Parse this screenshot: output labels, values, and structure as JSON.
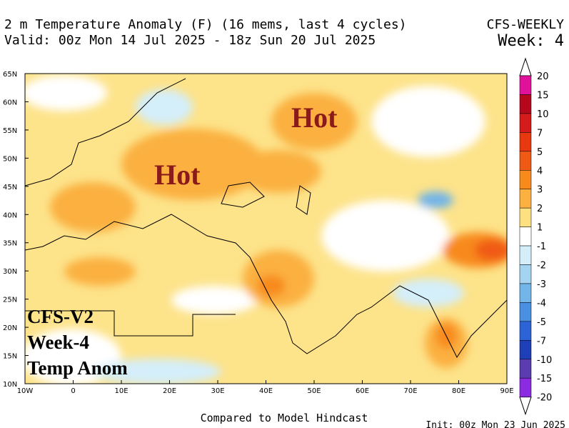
{
  "header": {
    "title": "2 m Temperature Anomaly (F) (16 mems, last 4 cycles)",
    "valid": "Valid: 00z Mon 14 Jul 2025 - 18z Sun 20 Jul 2025",
    "model": "CFS-WEEKLY",
    "week": "Week: 4"
  },
  "map": {
    "lat_labels": [
      "65N",
      "60N",
      "55N",
      "50N",
      "45N",
      "40N",
      "35N",
      "30N",
      "25N",
      "20N",
      "15N",
      "10N"
    ],
    "lon_labels": [
      "10W",
      "0",
      "10E",
      "20E",
      "30E",
      "40E",
      "50E",
      "60E",
      "70E",
      "80E",
      "90E"
    ],
    "annotations": [
      "Hot",
      "Hot"
    ],
    "caption": [
      "CFS-V2",
      "Week-4",
      "Temp Anom"
    ]
  },
  "colorbar": {
    "labels": [
      "20",
      "15",
      "10",
      "7",
      "5",
      "4",
      "3",
      "2",
      "1",
      "-1",
      "-2",
      "-3",
      "-4",
      "-5",
      "-7",
      "-10",
      "-15",
      "-20"
    ],
    "colors": [
      "#e0129a",
      "#b5081c",
      "#d41a1a",
      "#e8380f",
      "#f05a14",
      "#f88a1c",
      "#fbb040",
      "#fde07f",
      "#ffffff",
      "#d4eefa",
      "#a5d4f0",
      "#72b5e8",
      "#4a90e0",
      "#2c64d8",
      "#1f3fb8",
      "#5a3cb0",
      "#8a2be2"
    ]
  },
  "footer": {
    "note": "Compared to Model Hindcast",
    "init": "Init: 00z Mon 23 Jun 2025"
  }
}
